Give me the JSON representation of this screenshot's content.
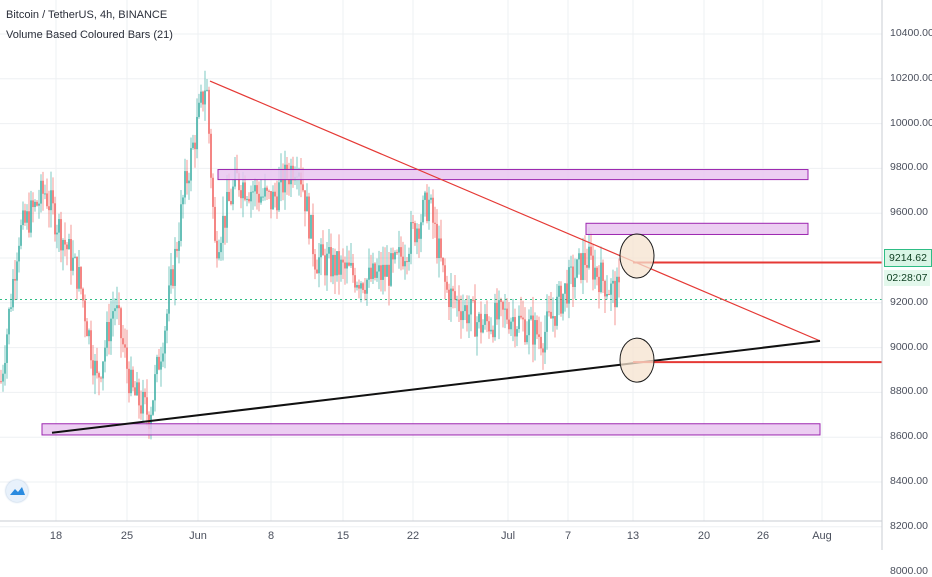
{
  "legend": {
    "symbol_line": "Bitcoin / TetherUS, 4h, BINANCE",
    "indicator_line": "Volume Based Coloured Bars (21)"
  },
  "price_axis": {
    "ticks": [
      "10400.00",
      "10200.00",
      "10000.00",
      "9800.00",
      "9600.00",
      "9400.00",
      "9200.00",
      "9000.00",
      "8800.00",
      "8600.00",
      "8400.00",
      "8200.00",
      "8000.00"
    ]
  },
  "time_axis": {
    "ticks": [
      "18",
      "25",
      "Jun",
      "8",
      "15",
      "22",
      "Jul",
      "7",
      "13",
      "20",
      "26",
      "Aug"
    ]
  },
  "last_price": {
    "value": "9214.62",
    "countdown": "02:28:07",
    "color": "#2ebd85"
  },
  "colors": {
    "up": "#26a69a",
    "down": "#ef5350",
    "resistance": "#e53935",
    "support": "#111111",
    "zone_fill": "#e9c6f0",
    "zone_border": "#9c27b0"
  },
  "logo": {
    "icon": "tradingview-logo-icon"
  },
  "chart_data": {
    "type": "candlestick",
    "symbol": "Bitcoin / TetherUS",
    "interval": "4h",
    "exchange": "BINANCE",
    "ylim": [
      7850,
      10550
    ],
    "price_levels": [
      8000,
      8200,
      8400,
      8600,
      8800,
      9000,
      9200,
      9400,
      9600,
      9800,
      10000,
      10200,
      10400
    ],
    "last_price": 9214.62,
    "series_path": [
      {
        "x": 0.0,
        "p": 8850
      },
      {
        "x": 0.02,
        "p": 9500
      },
      {
        "x": 0.05,
        "p": 9700
      },
      {
        "x": 0.09,
        "p": 9300
      },
      {
        "x": 0.11,
        "p": 8850
      },
      {
        "x": 0.13,
        "p": 9200
      },
      {
        "x": 0.15,
        "p": 8800
      },
      {
        "x": 0.17,
        "p": 8700
      },
      {
        "x": 0.19,
        "p": 9150
      },
      {
        "x": 0.21,
        "p": 9700
      },
      {
        "x": 0.235,
        "p": 10200
      },
      {
        "x": 0.245,
        "p": 9450
      },
      {
        "x": 0.27,
        "p": 9750
      },
      {
        "x": 0.31,
        "p": 9650
      },
      {
        "x": 0.34,
        "p": 9850
      },
      {
        "x": 0.36,
        "p": 9400
      },
      {
        "x": 0.39,
        "p": 9350
      },
      {
        "x": 0.42,
        "p": 9300
      },
      {
        "x": 0.45,
        "p": 9350
      },
      {
        "x": 0.49,
        "p": 9650
      },
      {
        "x": 0.51,
        "p": 9250
      },
      {
        "x": 0.55,
        "p": 9100
      },
      {
        "x": 0.58,
        "p": 9150
      },
      {
        "x": 0.62,
        "p": 9050
      },
      {
        "x": 0.645,
        "p": 9250
      },
      {
        "x": 0.67,
        "p": 9400
      },
      {
        "x": 0.7,
        "p": 9250
      },
      {
        "x": 0.71,
        "p": 9230
      }
    ],
    "lines": [
      {
        "name": "descending-resistance",
        "from": {
          "date": "Jun 2",
          "price": 10190
        },
        "to": {
          "date": "Jul 31",
          "price": 9030
        }
      },
      {
        "name": "ascending-support",
        "from": {
          "date": "May 15",
          "price": 8620
        },
        "to": {
          "date": "Jul 31",
          "price": 9030
        }
      },
      {
        "name": "level-9380",
        "from": {
          "date": "Jul 13",
          "price": 9380
        },
        "to": {
          "date": "Aug 6",
          "price": 9380
        }
      },
      {
        "name": "level-8935",
        "from": {
          "date": "Jul 13",
          "price": 8935
        },
        "to": {
          "date": "Aug 6",
          "price": 8935
        }
      }
    ],
    "zones": [
      {
        "name": "zone-9770",
        "from_date": "Jun 3",
        "to_date": "Jul 30",
        "low": 9750,
        "high": 9795
      },
      {
        "name": "zone-9530",
        "from_date": "Jul 8",
        "to_date": "Jul 30",
        "low": 9505,
        "high": 9555
      },
      {
        "name": "zone-8630",
        "from_date": "May 14",
        "to_date": "Jul 31",
        "low": 8610,
        "high": 8660
      }
    ],
    "circles": [
      {
        "name": "circle-upper",
        "date": "Jul 13",
        "price": 9400
      },
      {
        "name": "circle-lower",
        "date": "Jul 13",
        "price": 8935
      }
    ]
  }
}
